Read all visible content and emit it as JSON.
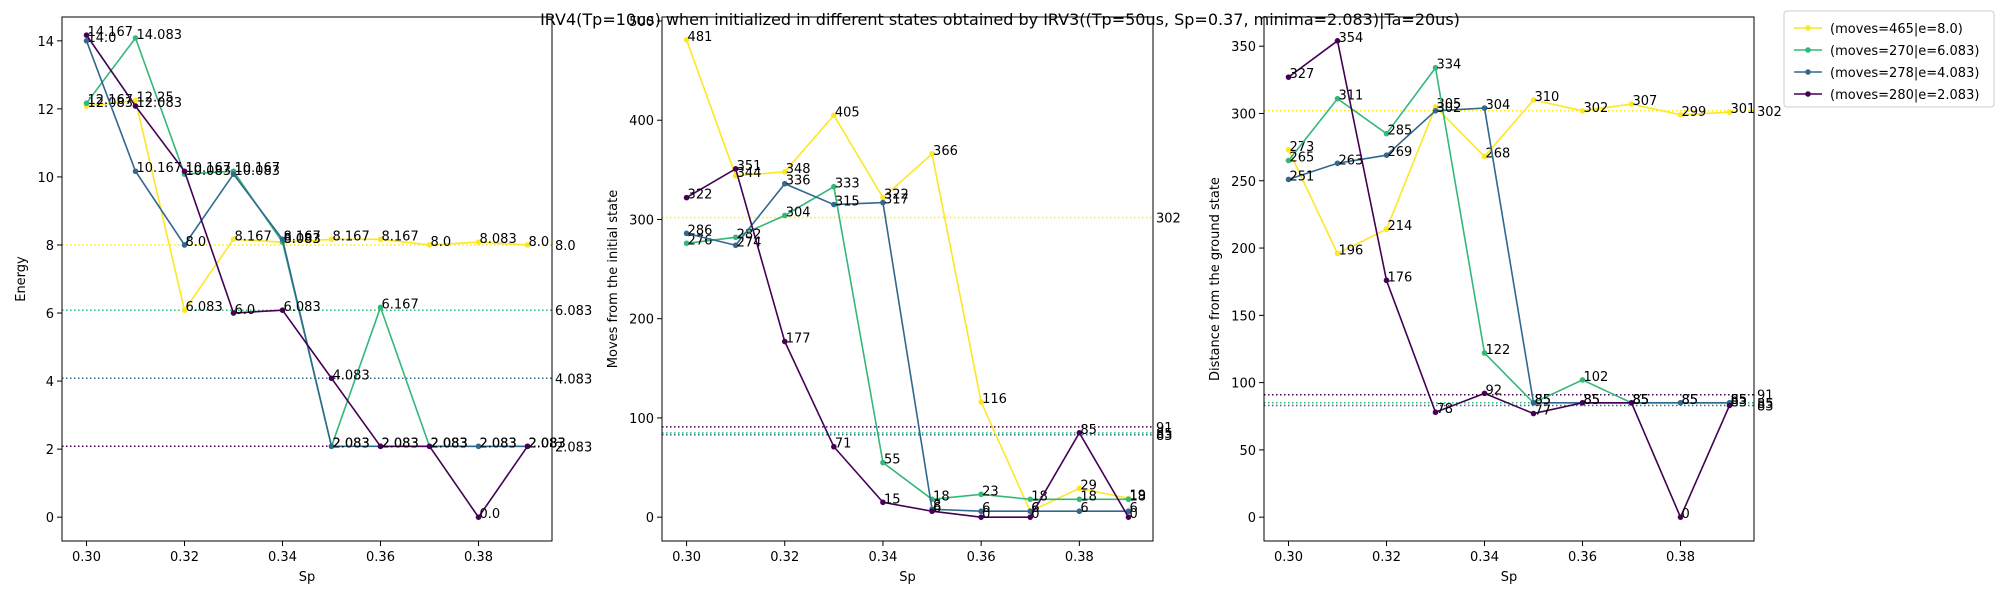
{
  "title": "IRV4(Tp=10us) when initialized in different states obtained by IRV3((Tp=50us, Sp=0.37, minima=2.083)|Ta=20us)",
  "legend": {
    "placement": "outside upper right",
    "entries": [
      "(moves=465|e=8.0)",
      "(moves=270|e=6.083)",
      "(moves=278|e=4.083)",
      "(moves=280|e=2.083)"
    ]
  },
  "colors": [
    "#fde725",
    "#35b779",
    "#31688e",
    "#440154"
  ],
  "chart_data": [
    {
      "type": "line",
      "xlabel": "Sp",
      "ylabel": "Energy",
      "xlim": [
        0.295,
        0.395
      ],
      "ylim": [
        -0.7,
        14.7
      ],
      "xticks": [
        0.3,
        0.32,
        0.34,
        0.36,
        0.38
      ],
      "xtick_labels": [
        "0.30",
        "0.32",
        "0.34",
        "0.36",
        "0.38"
      ],
      "yticks": [
        0,
        2,
        4,
        6,
        8,
        10,
        12,
        14
      ],
      "ytick_labels": [
        "0",
        "2",
        "4",
        "6",
        "8",
        "10",
        "12",
        "14"
      ],
      "grid": false,
      "x": [
        0.3,
        0.31,
        0.32,
        0.33,
        0.34,
        0.35,
        0.36,
        0.37,
        0.38,
        0.39
      ],
      "series": [
        {
          "name": "(moves=465|e=8.0)",
          "values": [
            12.083,
            12.25,
            6.083,
            8.167,
            8.083,
            8.167,
            8.167,
            8.0,
            8.083,
            8.0
          ],
          "labels": [
            "12.083",
            "12.25",
            "6.083",
            "8.167",
            "8.083",
            "8.167",
            "8.167",
            "8.0",
            "8.083",
            "8.0"
          ]
        },
        {
          "name": "(moves=270|e=6.083)",
          "values": [
            12.167,
            14.083,
            10.083,
            10.167,
            8.083,
            2.083,
            6.167,
            2.083,
            2.083,
            2.083
          ],
          "labels": [
            "12.167",
            "14.083",
            "10.083",
            "10.167",
            "8.083",
            "2.083",
            "6.167",
            "2.083",
            "2.083",
            "2.083"
          ]
        },
        {
          "name": "(moves=278|e=4.083)",
          "values": [
            14.0,
            10.167,
            8.0,
            10.083,
            8.167,
            2.083,
            2.083,
            2.083,
            2.083,
            2.083
          ],
          "labels": [
            "14.0",
            "10.167",
            "8.0",
            "10.083",
            "8.167",
            "2.083",
            "2.083",
            "2.083",
            "2.083",
            "2.083"
          ]
        },
        {
          "name": "(moves=280|e=2.083)",
          "values": [
            14.167,
            12.083,
            10.167,
            6.0,
            6.083,
            4.083,
            2.083,
            2.083,
            0.0,
            2.083
          ],
          "labels": [
            "14.167",
            "12.083",
            "10.167",
            "6.0",
            "6.083",
            "4.083",
            "2.083",
            "2.083",
            "0.0",
            "2.083"
          ]
        }
      ],
      "hlines": [
        {
          "y": 8.0,
          "label": "8.0",
          "series": 0
        },
        {
          "y": 6.083,
          "label": "6.083",
          "series": 1
        },
        {
          "y": 4.083,
          "label": "4.083",
          "series": 2
        },
        {
          "y": 2.083,
          "label": "2.083",
          "series": 3
        }
      ]
    },
    {
      "type": "line",
      "xlabel": "Sp",
      "ylabel": "Moves from the initial state",
      "xlim": [
        0.295,
        0.395
      ],
      "ylim": [
        -24,
        504
      ],
      "xticks": [
        0.3,
        0.32,
        0.34,
        0.36,
        0.38
      ],
      "xtick_labels": [
        "0.30",
        "0.32",
        "0.34",
        "0.36",
        "0.38"
      ],
      "yticks": [
        0,
        100,
        200,
        300,
        400,
        500
      ],
      "ytick_labels": [
        "0",
        "100",
        "200",
        "300",
        "400",
        "500"
      ],
      "grid": false,
      "x": [
        0.3,
        0.31,
        0.32,
        0.33,
        0.34,
        0.35,
        0.36,
        0.37,
        0.38,
        0.39
      ],
      "series": [
        {
          "name": "(moves=465|e=8.0)",
          "values": [
            481,
            344,
            348,
            405,
            322,
            366,
            116,
            6,
            29,
            19
          ],
          "labels": [
            "481",
            "344",
            "348",
            "405",
            "322",
            "366",
            "116",
            "6",
            "29",
            "19"
          ]
        },
        {
          "name": "(moves=270|e=6.083)",
          "values": [
            276,
            282,
            304,
            333,
            55,
            18,
            23,
            18,
            18,
            18
          ],
          "labels": [
            "276",
            "282",
            "304",
            "333",
            "55",
            "18",
            "23",
            "18",
            "18",
            "18"
          ]
        },
        {
          "name": "(moves=278|e=4.083)",
          "values": [
            286,
            274,
            336,
            315,
            317,
            8,
            6,
            6,
            6,
            6
          ],
          "labels": [
            "286",
            "274",
            "336",
            "315",
            "317",
            "8",
            "6",
            "6",
            "6",
            "6"
          ]
        },
        {
          "name": "(moves=280|e=2.083)",
          "values": [
            322,
            351,
            177,
            71,
            15,
            6,
            0,
            0,
            85,
            0
          ],
          "labels": [
            "322",
            "351",
            "177",
            "71",
            "15",
            "6",
            "0",
            "0",
            "85",
            "0"
          ]
        }
      ],
      "hlines": [
        {
          "y": 302,
          "label": "302",
          "series": 0
        },
        {
          "y": 85,
          "label": "85",
          "series": 1
        },
        {
          "y": 83,
          "label": "83",
          "series": 2
        },
        {
          "y": 91,
          "label": "91",
          "series": 3
        }
      ]
    },
    {
      "type": "line",
      "xlabel": "Sp",
      "ylabel": "Distance from the ground state",
      "xlim": [
        0.295,
        0.395
      ],
      "ylim": [
        -17.7,
        371.7
      ],
      "xticks": [
        0.3,
        0.32,
        0.34,
        0.36,
        0.38
      ],
      "xtick_labels": [
        "0.30",
        "0.32",
        "0.34",
        "0.36",
        "0.38"
      ],
      "yticks": [
        0,
        50,
        100,
        150,
        200,
        250,
        300,
        350
      ],
      "ytick_labels": [
        "0",
        "50",
        "100",
        "150",
        "200",
        "250",
        "300",
        "350"
      ],
      "grid": false,
      "x": [
        0.3,
        0.31,
        0.32,
        0.33,
        0.34,
        0.35,
        0.36,
        0.37,
        0.38,
        0.39
      ],
      "series": [
        {
          "name": "(moves=465|e=8.0)",
          "values": [
            273,
            196,
            214,
            305,
            268,
            310,
            302,
            307,
            299,
            301
          ],
          "labels": [
            "273",
            "196",
            "214",
            "305",
            "268",
            "310",
            "302",
            "307",
            "299",
            "301"
          ]
        },
        {
          "name": "(moves=270|e=6.083)",
          "values": [
            265,
            311,
            285,
            334,
            122,
            85,
            102,
            85,
            85,
            85
          ],
          "labels": [
            "265",
            "311",
            "285",
            "334",
            "122",
            "85",
            "102",
            "85",
            "85",
            "85"
          ]
        },
        {
          "name": "(moves=278|e=4.083)",
          "values": [
            251,
            263,
            269,
            302,
            304,
            85,
            85,
            85,
            85,
            85
          ],
          "labels": [
            "251",
            "263",
            "269",
            "302",
            "304",
            "85",
            "85",
            "85",
            "85",
            "85"
          ]
        },
        {
          "name": "(moves=280|e=2.083)",
          "values": [
            327,
            354,
            176,
            78,
            92,
            77,
            85,
            85,
            0,
            83
          ],
          "labels": [
            "327",
            "354",
            "176",
            "78",
            "92",
            "77",
            "85",
            "85",
            "0",
            "83"
          ]
        }
      ],
      "hlines": [
        {
          "y": 302,
          "label": "302",
          "series": 0
        },
        {
          "y": 85,
          "label": "85",
          "series": 1
        },
        {
          "y": 83,
          "label": "83",
          "series": 2
        },
        {
          "y": 91,
          "label": "91",
          "series": 3
        }
      ]
    }
  ]
}
